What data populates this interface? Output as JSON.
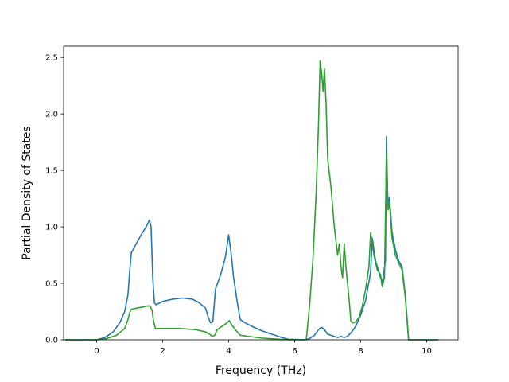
{
  "chart_data": {
    "type": "line",
    "title": "",
    "xlabel": "Frequency (THz)",
    "ylabel": "Partial Density of States",
    "xlim": [
      -1.0,
      10.95
    ],
    "ylim": [
      0.0,
      2.6
    ],
    "xticks": [
      0,
      2,
      4,
      6,
      8,
      10
    ],
    "xtick_labels": [
      "0",
      "2",
      "4",
      "6",
      "8",
      "10"
    ],
    "yticks": [
      0.0,
      0.5,
      1.0,
      1.5,
      2.0,
      2.5
    ],
    "ytick_labels": [
      "0.0",
      "0.5",
      "1.0",
      "1.5",
      "2.0",
      "2.5"
    ],
    "grid": false,
    "legend": "none",
    "series": [
      {
        "color": "#1f77b4",
        "points": [
          [
            -0.95,
            0.0
          ],
          [
            0.0,
            0.0
          ],
          [
            0.25,
            0.02
          ],
          [
            0.5,
            0.07
          ],
          [
            0.7,
            0.15
          ],
          [
            0.85,
            0.25
          ],
          [
            0.95,
            0.4
          ],
          [
            1.0,
            0.6
          ],
          [
            1.05,
            0.77
          ],
          [
            1.2,
            0.85
          ],
          [
            1.35,
            0.93
          ],
          [
            1.5,
            1.0
          ],
          [
            1.6,
            1.06
          ],
          [
            1.65,
            1.0
          ],
          [
            1.7,
            0.55
          ],
          [
            1.75,
            0.33
          ],
          [
            1.8,
            0.31
          ],
          [
            2.0,
            0.34
          ],
          [
            2.3,
            0.36
          ],
          [
            2.6,
            0.37
          ],
          [
            2.9,
            0.36
          ],
          [
            3.1,
            0.33
          ],
          [
            3.3,
            0.28
          ],
          [
            3.38,
            0.2
          ],
          [
            3.45,
            0.15
          ],
          [
            3.52,
            0.16
          ],
          [
            3.6,
            0.45
          ],
          [
            3.75,
            0.57
          ],
          [
            3.9,
            0.73
          ],
          [
            4.0,
            0.93
          ],
          [
            4.08,
            0.75
          ],
          [
            4.15,
            0.55
          ],
          [
            4.25,
            0.35
          ],
          [
            4.35,
            0.18
          ],
          [
            4.5,
            0.15
          ],
          [
            4.7,
            0.12
          ],
          [
            5.0,
            0.08
          ],
          [
            5.3,
            0.05
          ],
          [
            5.6,
            0.02
          ],
          [
            5.8,
            0.005
          ],
          [
            6.3,
            0.0
          ],
          [
            6.45,
            0.01
          ],
          [
            6.6,
            0.04
          ],
          [
            6.75,
            0.1
          ],
          [
            6.82,
            0.11
          ],
          [
            6.9,
            0.09
          ],
          [
            7.0,
            0.05
          ],
          [
            7.2,
            0.03
          ],
          [
            7.3,
            0.02
          ],
          [
            7.4,
            0.03
          ],
          [
            7.5,
            0.02
          ],
          [
            7.6,
            0.03
          ],
          [
            7.7,
            0.06
          ],
          [
            7.85,
            0.12
          ],
          [
            8.0,
            0.22
          ],
          [
            8.15,
            0.35
          ],
          [
            8.3,
            0.6
          ],
          [
            8.35,
            0.9
          ],
          [
            8.45,
            0.7
          ],
          [
            8.55,
            0.6
          ],
          [
            8.65,
            0.5
          ],
          [
            8.75,
            0.7
          ],
          [
            8.78,
            1.8
          ],
          [
            8.82,
            1.2
          ],
          [
            8.87,
            1.26
          ],
          [
            8.95,
            0.95
          ],
          [
            9.05,
            0.8
          ],
          [
            9.15,
            0.7
          ],
          [
            9.25,
            0.65
          ],
          [
            9.35,
            0.4
          ],
          [
            9.45,
            0.0
          ],
          [
            10.35,
            0.0
          ]
        ]
      },
      {
        "color": "#2ca02c",
        "points": [
          [
            -0.95,
            0.0
          ],
          [
            0.0,
            0.0
          ],
          [
            0.3,
            0.01
          ],
          [
            0.6,
            0.04
          ],
          [
            0.85,
            0.1
          ],
          [
            0.95,
            0.18
          ],
          [
            1.0,
            0.24
          ],
          [
            1.05,
            0.27
          ],
          [
            1.2,
            0.28
          ],
          [
            1.4,
            0.29
          ],
          [
            1.55,
            0.3
          ],
          [
            1.62,
            0.3
          ],
          [
            1.68,
            0.26
          ],
          [
            1.72,
            0.17
          ],
          [
            1.78,
            0.1
          ],
          [
            2.0,
            0.1
          ],
          [
            2.5,
            0.1
          ],
          [
            3.0,
            0.09
          ],
          [
            3.3,
            0.07
          ],
          [
            3.42,
            0.05
          ],
          [
            3.5,
            0.03
          ],
          [
            3.58,
            0.04
          ],
          [
            3.65,
            0.09
          ],
          [
            3.8,
            0.12
          ],
          [
            3.95,
            0.15
          ],
          [
            4.02,
            0.17
          ],
          [
            4.1,
            0.13
          ],
          [
            4.2,
            0.09
          ],
          [
            4.35,
            0.04
          ],
          [
            4.6,
            0.03
          ],
          [
            5.0,
            0.015
          ],
          [
            5.5,
            0.005
          ],
          [
            5.8,
            0.0
          ],
          [
            6.35,
            0.0
          ],
          [
            6.45,
            0.3
          ],
          [
            6.55,
            0.7
          ],
          [
            6.65,
            1.3
          ],
          [
            6.72,
            1.9
          ],
          [
            6.77,
            2.47
          ],
          [
            6.82,
            2.35
          ],
          [
            6.86,
            2.2
          ],
          [
            6.9,
            2.4
          ],
          [
            6.95,
            2.1
          ],
          [
            7.0,
            1.6
          ],
          [
            7.1,
            1.35
          ],
          [
            7.2,
            1.0
          ],
          [
            7.3,
            0.75
          ],
          [
            7.35,
            0.85
          ],
          [
            7.4,
            0.65
          ],
          [
            7.45,
            0.55
          ],
          [
            7.5,
            0.85
          ],
          [
            7.55,
            0.65
          ],
          [
            7.65,
            0.35
          ],
          [
            7.7,
            0.17
          ],
          [
            7.75,
            0.15
          ],
          [
            7.85,
            0.16
          ],
          [
            7.95,
            0.2
          ],
          [
            8.05,
            0.3
          ],
          [
            8.15,
            0.45
          ],
          [
            8.25,
            0.65
          ],
          [
            8.3,
            0.95
          ],
          [
            8.4,
            0.75
          ],
          [
            8.5,
            0.62
          ],
          [
            8.6,
            0.58
          ],
          [
            8.65,
            0.47
          ],
          [
            8.72,
            0.55
          ],
          [
            8.78,
            1.65
          ],
          [
            8.83,
            1.15
          ],
          [
            8.87,
            1.22
          ],
          [
            8.95,
            0.9
          ],
          [
            9.05,
            0.75
          ],
          [
            9.15,
            0.68
          ],
          [
            9.25,
            0.62
          ],
          [
            9.35,
            0.38
          ],
          [
            9.45,
            0.0
          ],
          [
            10.35,
            0.0
          ]
        ]
      }
    ]
  }
}
